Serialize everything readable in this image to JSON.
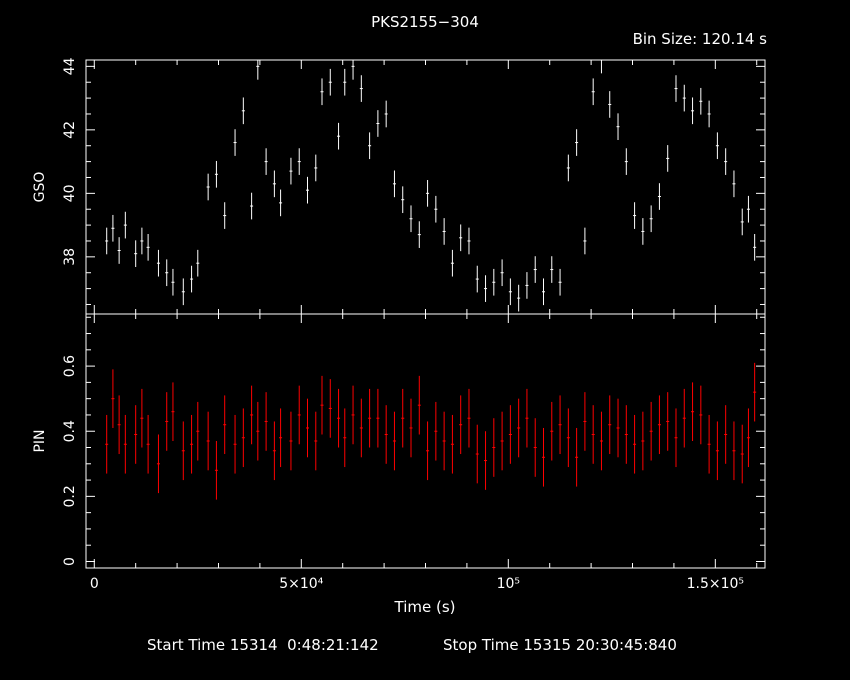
{
  "title": "PKS2155−304",
  "bin_size_label": "Bin Size: 120.14 s",
  "footer": {
    "start_label": "Start Time 15314  0:48:21:142",
    "stop_label": "Stop Time 15315 20:30:45:840"
  },
  "colors": {
    "background": "#000000",
    "axes": "#ffffff",
    "gso_series": "#ffffff",
    "pin_series": "#ff0000"
  },
  "chart_data": [
    {
      "type": "scatter",
      "title": "PKS2155−304",
      "xlabel": "Time (s)",
      "ylabel": "GSO",
      "xlim": [
        -2000,
        162000
      ],
      "ylim": [
        36.2,
        44.2
      ],
      "x_ticks": [
        0,
        50000,
        100000,
        150000
      ],
      "x_tick_labels": [
        "0",
        "5×10⁴",
        "10⁵",
        "1.5×10⁵"
      ],
      "y_ticks": [
        38,
        40,
        42,
        44
      ],
      "y_tick_labels": [
        "38",
        "40",
        "42",
        "44"
      ],
      "error_bars": true,
      "series": [
        {
          "color": "#ffffff",
          "x": [
            3000,
            4500,
            6000,
            7500,
            10000,
            11500,
            13000,
            15500,
            17500,
            19000,
            21500,
            23500,
            25000,
            27500,
            29500,
            31500,
            34000,
            36000,
            38000,
            39500,
            41500,
            43500,
            45000,
            47500,
            49500,
            51500,
            53500,
            55000,
            57000,
            59000,
            60500,
            62500,
            64500,
            66500,
            68500,
            70500,
            72500,
            74500,
            76500,
            78500,
            80500,
            82500,
            84500,
            86500,
            88500,
            90500,
            92500,
            94500,
            96500,
            98500,
            100500,
            102500,
            104500,
            106500,
            108500,
            110500,
            112500,
            114500,
            116500,
            118500,
            120500,
            122500,
            124500,
            126500,
            128500,
            130500,
            132500,
            134500,
            136500,
            138500,
            140500,
            142500,
            144500,
            146500,
            148500,
            150500,
            152500,
            154500,
            156500,
            158000,
            159500
          ],
          "y": [
            38.5,
            38.9,
            38.2,
            39.0,
            38.1,
            38.5,
            38.3,
            37.8,
            37.5,
            37.2,
            36.9,
            37.3,
            37.8,
            40.2,
            40.6,
            39.3,
            41.6,
            42.6,
            39.6,
            44.0,
            41.0,
            40.3,
            39.7,
            40.7,
            41.0,
            40.1,
            40.8,
            43.2,
            43.5,
            41.8,
            43.5,
            44.0,
            43.3,
            41.5,
            42.2,
            42.5,
            40.3,
            39.8,
            39.2,
            38.7,
            40.0,
            39.5,
            38.8,
            37.8,
            38.6,
            38.5,
            37.3,
            37.0,
            37.2,
            37.5,
            36.9,
            36.7,
            37.1,
            37.6,
            36.9,
            37.6,
            37.2,
            40.8,
            41.6,
            38.5,
            43.2,
            44.2,
            42.8,
            42.1,
            41.0,
            39.3,
            38.8,
            39.2,
            39.9,
            41.1,
            43.3,
            43.0,
            42.6,
            42.9,
            42.5,
            41.5,
            41.0,
            40.3,
            39.1,
            39.5,
            38.3
          ]
        }
      ]
    },
    {
      "type": "scatter",
      "xlabel": "Time (s)",
      "ylabel": "PIN",
      "xlim": [
        -2000,
        162000
      ],
      "ylim": [
        -0.02,
        0.76
      ],
      "y_ticks": [
        0,
        0.2,
        0.4,
        0.6
      ],
      "y_tick_labels": [
        "0",
        "0.2",
        "0.4",
        "0.6"
      ],
      "error_bars": true,
      "series": [
        {
          "color": "#ff0000",
          "x": [
            3000,
            4500,
            6000,
            7500,
            10000,
            11500,
            13000,
            15500,
            17500,
            19000,
            21500,
            23500,
            25000,
            27500,
            29500,
            31500,
            34000,
            36000,
            38000,
            39500,
            41500,
            43500,
            45000,
            47500,
            49500,
            51500,
            53500,
            55000,
            57000,
            59000,
            60500,
            62500,
            64500,
            66500,
            68500,
            70500,
            72500,
            74500,
            76500,
            78500,
            80500,
            82500,
            84500,
            86500,
            88500,
            90500,
            92500,
            94500,
            96500,
            98500,
            100500,
            102500,
            104500,
            106500,
            108500,
            110500,
            112500,
            114500,
            116500,
            118500,
            120500,
            122500,
            124500,
            126500,
            128500,
            130500,
            132500,
            134500,
            136500,
            138500,
            140500,
            142500,
            144500,
            146500,
            148500,
            150500,
            152500,
            154500,
            156500,
            158000,
            159500
          ],
          "y": [
            0.36,
            0.5,
            0.42,
            0.36,
            0.39,
            0.44,
            0.36,
            0.3,
            0.43,
            0.46,
            0.34,
            0.36,
            0.4,
            0.37,
            0.28,
            0.42,
            0.36,
            0.38,
            0.45,
            0.4,
            0.43,
            0.34,
            0.38,
            0.37,
            0.45,
            0.41,
            0.37,
            0.48,
            0.47,
            0.44,
            0.38,
            0.45,
            0.41,
            0.44,
            0.44,
            0.39,
            0.37,
            0.44,
            0.41,
            0.48,
            0.34,
            0.4,
            0.37,
            0.36,
            0.42,
            0.44,
            0.33,
            0.31,
            0.35,
            0.37,
            0.39,
            0.41,
            0.44,
            0.35,
            0.32,
            0.4,
            0.42,
            0.38,
            0.32,
            0.43,
            0.39,
            0.37,
            0.42,
            0.41,
            0.39,
            0.36,
            0.37,
            0.4,
            0.42,
            0.43,
            0.38,
            0.44,
            0.46,
            0.45,
            0.36,
            0.34,
            0.39,
            0.34,
            0.33,
            0.38,
            0.52
          ]
        }
      ]
    }
  ]
}
